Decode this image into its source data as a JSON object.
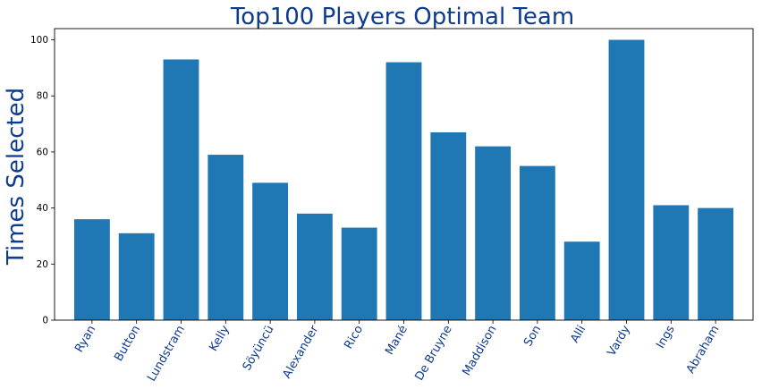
{
  "chart_data": {
    "type": "bar",
    "title": "Top100 Players Optimal Team",
    "xlabel": "",
    "ylabel": "Times Selected",
    "categories": [
      "Ryan",
      "Button",
      "Lundstram",
      "Kelly",
      "Söyüncü",
      "Alexander",
      "Rico",
      "Mané",
      "De Bruyne",
      "Maddison",
      "Son",
      "Alli",
      "Vardy",
      "Ings",
      "Abraham"
    ],
    "values": [
      36,
      31,
      93,
      59,
      49,
      38,
      33,
      92,
      67,
      62,
      55,
      28,
      100,
      41,
      40
    ],
    "ylim": [
      0,
      104
    ],
    "yticks": [
      0,
      20,
      40,
      60,
      80,
      100
    ],
    "bar_color": "#1f77b4",
    "title_color": "#0d3b8e",
    "label_color": "#0d3b8e",
    "grid": false,
    "legend": "none"
  }
}
